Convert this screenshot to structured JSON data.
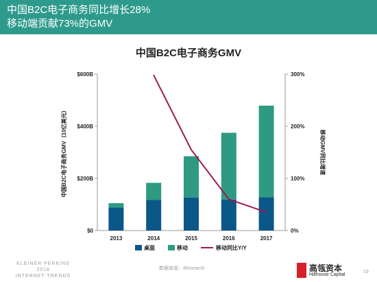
{
  "header": {
    "line1": "中国B2C电子商务同比增长28%",
    "line2": "移动端贡献73%的GMV"
  },
  "chart_data": {
    "type": "bar",
    "title": "中国B2C电子商务GMV",
    "stacked": true,
    "categories": [
      "2013",
      "2014",
      "2015",
      "2016",
      "2017"
    ],
    "ylabel": "中国B2C电子商务GMV（10亿美元）",
    "ylim": [
      0,
      600
    ],
    "yticks": [
      "$0",
      "$200B",
      "$400B",
      "$600B"
    ],
    "y2label": "移动GMV同比增速",
    "y2lim": [
      0,
      300
    ],
    "y2ticks": [
      "0%",
      "100%",
      "200%",
      "300%"
    ],
    "series": [
      {
        "name": "桌面",
        "color": "#0b5788",
        "values": [
          88,
          118,
          127,
          119,
          128
        ]
      },
      {
        "name": "移动",
        "color": "#2e9a82",
        "values": [
          17,
          65,
          158,
          256,
          351
        ]
      },
      {
        "name": "移动同比Y/Y",
        "kind": "line",
        "axis": "right",
        "color": "#9b1b52",
        "values": [
          null,
          298,
          155,
          60,
          35
        ]
      }
    ],
    "legend_position": "bottom"
  },
  "footer": {
    "left_line1": "KLEINER PERKINS",
    "left_line2": "2018",
    "left_line3": "INTERNET TRENDS",
    "source": "数据来源：iResearch",
    "brand_cn": "高瓴资本",
    "brand_en": "Hillhouse Capital",
    "brand_mark": "HILLHOUSE CAPITAL",
    "page_number": "19"
  }
}
